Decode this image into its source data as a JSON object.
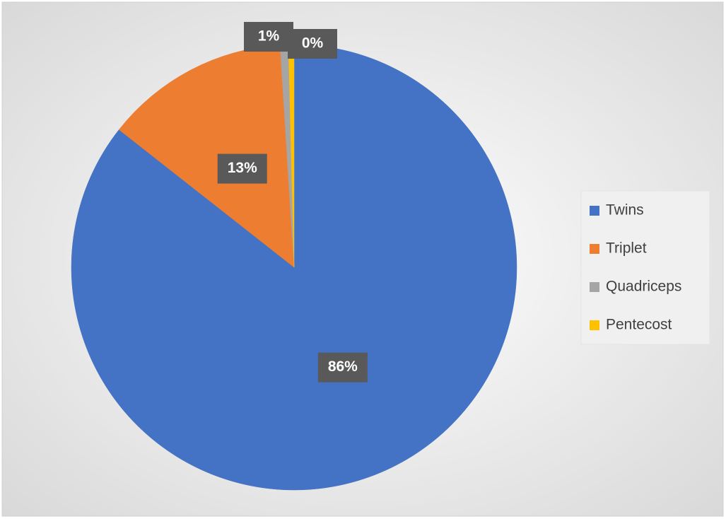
{
  "chart_data": {
    "type": "pie",
    "categories": [
      "Twins",
      "Triplet",
      "Quadriceps",
      "Pentecost"
    ],
    "values": [
      85.6,
      13.4,
      0.6,
      0.4
    ],
    "value_labels": [
      "86%",
      "13%",
      "1%",
      "0%"
    ],
    "colors": [
      "#4472c4",
      "#ed7d31",
      "#a5a5a5",
      "#ffc000"
    ],
    "legend": "right"
  }
}
